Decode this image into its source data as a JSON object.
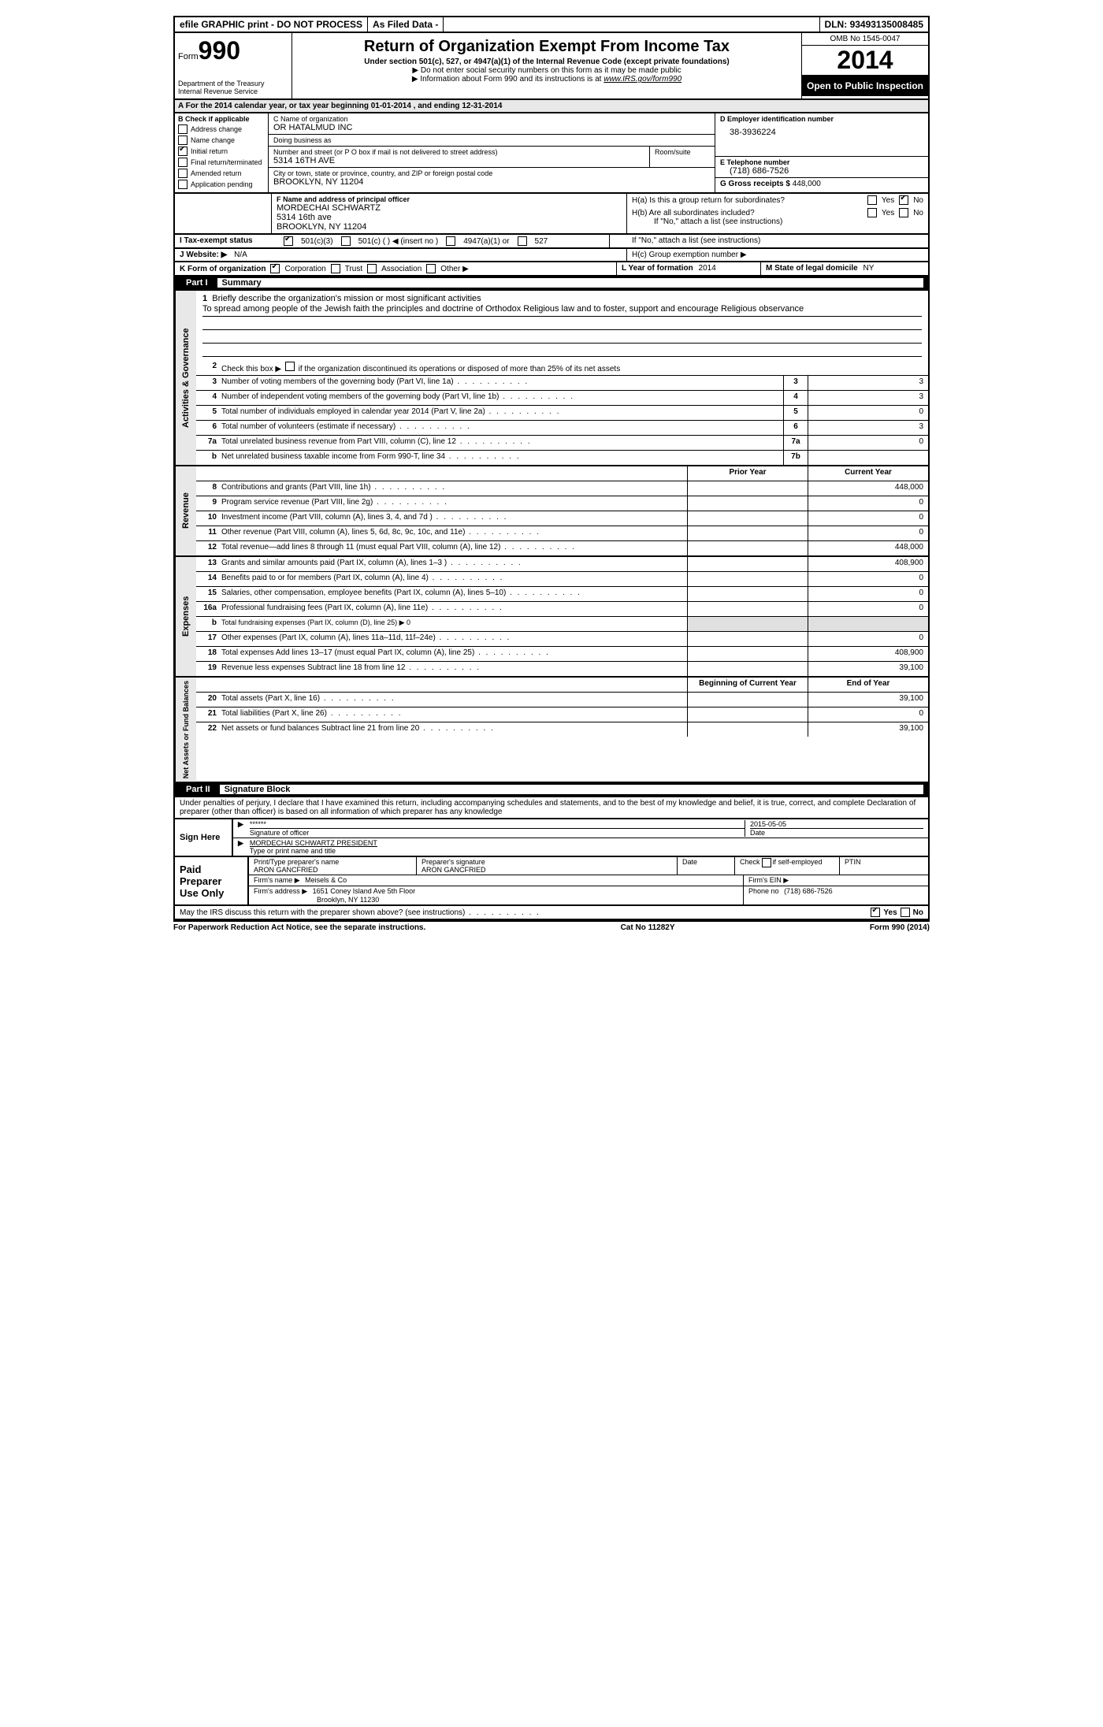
{
  "topbar": {
    "efile": "efile GRAPHIC print - DO NOT PROCESS",
    "asfiled": "As Filed Data -",
    "dln_label": "DLN:",
    "dln": "93493135008485"
  },
  "header": {
    "form_word": "Form",
    "form_num": "990",
    "dept1": "Department of the Treasury",
    "dept2": "Internal Revenue Service",
    "title": "Return of Organization Exempt From Income Tax",
    "subtitle": "Under section 501(c), 527, or 4947(a)(1) of the Internal Revenue Code (except private foundations)",
    "note1": "▶ Do not enter social security numbers on this form as it may be made public",
    "note2": "▶ Information about Form 990 and its instructions is at",
    "note2_link": "www.IRS.gov/form990",
    "omb": "OMB No 1545-0047",
    "year": "2014",
    "inspection": "Open to Public Inspection"
  },
  "section_a": "A For the 2014 calendar year, or tax year beginning 01-01-2014    , and ending 12-31-2014",
  "col_b": {
    "label": "B Check if applicable",
    "items": [
      "Address change",
      "Name change",
      "Initial return",
      "Final return/terminated",
      "Amended return",
      "Application pending"
    ],
    "checked_index": 2
  },
  "col_c": {
    "name_label": "C Name of organization",
    "name": "OR HATALMUD INC",
    "dba_label": "Doing business as",
    "dba": "",
    "street_label": "Number and street (or P O box if mail is not delivered to street address)",
    "room_label": "Room/suite",
    "street": "5314 16TH AVE",
    "city_label": "City or town, state or province, country, and ZIP or foreign postal code",
    "city": "BROOKLYN, NY  11204"
  },
  "col_d": {
    "ein_label": "D Employer identification number",
    "ein": "38-3936224",
    "phone_label": "E Telephone number",
    "phone": "(718) 686-7526",
    "gross_label": "G Gross receipts $",
    "gross": "448,000"
  },
  "section_f": {
    "label": "F  Name and address of principal officer",
    "name": "MORDECHAI SCHWARTZ",
    "addr1": "5314 16th ave",
    "addr2": "BROOKLYN, NY  11204"
  },
  "section_h": {
    "ha_label": "H(a)  Is this a group return for subordinates?",
    "ha_yes": "Yes",
    "ha_no": "No",
    "hb_label": "H(b)  Are all subordinates included?",
    "hb_note": "If \"No,\" attach a list  (see instructions)",
    "hc_label": "H(c)  Group exemption number ▶"
  },
  "section_i": {
    "label": "I  Tax-exempt status",
    "opt1": "501(c)(3)",
    "opt2": "501(c) (   ) ◀ (insert no )",
    "opt3": "4947(a)(1) or",
    "opt4": "527"
  },
  "section_j": {
    "label": "J  Website: ▶",
    "value": "N/A"
  },
  "section_k": {
    "label": "K Form of organization",
    "opts": [
      "Corporation",
      "Trust",
      "Association",
      "Other ▶"
    ],
    "checked": 0
  },
  "section_l": {
    "label": "L Year of formation",
    "value": "2014"
  },
  "section_m": {
    "label": "M State of legal domicile",
    "value": "NY"
  },
  "part1": {
    "label": "Part I",
    "title": "Summary"
  },
  "summary": {
    "line1_label": "Briefly describe the organization's mission or most significant activities",
    "line1_text": "To spread among people of the Jewish faith the principles and doctrine of Orthodox Religious law and to foster, support and encourage Religious observance",
    "line2": "Check this box ▶     if the organization discontinued its operations or disposed of more than 25% of its net assets",
    "governance_label": "Activities & Governance",
    "revenue_label": "Revenue",
    "expenses_label": "Expenses",
    "netassets_label": "Net Assets or Fund Balances",
    "prior_year": "Prior Year",
    "current_year": "Current Year",
    "beg_year": "Beginning of Current Year",
    "end_year": "End of Year",
    "gov_rows": [
      {
        "n": "3",
        "d": "Number of voting members of the governing body (Part VI, line 1a)",
        "box": "3",
        "v": "3"
      },
      {
        "n": "4",
        "d": "Number of independent voting members of the governing body (Part VI, line 1b)",
        "box": "4",
        "v": "3"
      },
      {
        "n": "5",
        "d": "Total number of individuals employed in calendar year 2014 (Part V, line 2a)",
        "box": "5",
        "v": "0"
      },
      {
        "n": "6",
        "d": "Total number of volunteers (estimate if necessary)",
        "box": "6",
        "v": "3"
      },
      {
        "n": "7a",
        "d": "Total unrelated business revenue from Part VIII, column (C), line 12",
        "box": "7a",
        "v": "0"
      },
      {
        "n": "b",
        "d": "Net unrelated business taxable income from Form 990-T, line 34",
        "box": "7b",
        "v": ""
      }
    ],
    "rev_rows": [
      {
        "n": "8",
        "d": "Contributions and grants (Part VIII, line 1h)",
        "p": "",
        "c": "448,000"
      },
      {
        "n": "9",
        "d": "Program service revenue (Part VIII, line 2g)",
        "p": "",
        "c": "0"
      },
      {
        "n": "10",
        "d": "Investment income (Part VIII, column (A), lines 3, 4, and 7d )",
        "p": "",
        "c": "0"
      },
      {
        "n": "11",
        "d": "Other revenue (Part VIII, column (A), lines 5, 6d, 8c, 9c, 10c, and 11e)",
        "p": "",
        "c": "0"
      },
      {
        "n": "12",
        "d": "Total revenue—add lines 8 through 11 (must equal Part VIII, column (A), line 12)",
        "p": "",
        "c": "448,000"
      }
    ],
    "exp_rows": [
      {
        "n": "13",
        "d": "Grants and similar amounts paid (Part IX, column (A), lines 1–3 )",
        "p": "",
        "c": "408,900"
      },
      {
        "n": "14",
        "d": "Benefits paid to or for members (Part IX, column (A), line 4)",
        "p": "",
        "c": "0"
      },
      {
        "n": "15",
        "d": "Salaries, other compensation, employee benefits (Part IX, column (A), lines 5–10)",
        "p": "",
        "c": "0"
      },
      {
        "n": "16a",
        "d": "Professional fundraising fees (Part IX, column (A), line 11e)",
        "p": "",
        "c": "0"
      },
      {
        "n": "b",
        "d": "Total fundraising expenses (Part IX, column (D), line 25) ▶ 0",
        "p": null,
        "c": null,
        "shade": true
      },
      {
        "n": "17",
        "d": "Other expenses (Part IX, column (A), lines 11a–11d, 11f–24e)",
        "p": "",
        "c": "0"
      },
      {
        "n": "18",
        "d": "Total expenses  Add lines 13–17 (must equal Part IX, column (A), line 25)",
        "p": "",
        "c": "408,900"
      },
      {
        "n": "19",
        "d": "Revenue less expenses  Subtract line 18 from line 12",
        "p": "",
        "c": "39,100"
      }
    ],
    "net_rows": [
      {
        "n": "20",
        "d": "Total assets (Part X, line 16)",
        "p": "",
        "c": "39,100"
      },
      {
        "n": "21",
        "d": "Total liabilities (Part X, line 26)",
        "p": "",
        "c": "0"
      },
      {
        "n": "22",
        "d": "Net assets or fund balances  Subtract line 21 from line 20",
        "p": "",
        "c": "39,100"
      }
    ]
  },
  "part2": {
    "label": "Part II",
    "title": "Signature Block"
  },
  "perjury": "Under penalties of perjury, I declare that I have examined this return, including accompanying schedules and statements, and to the best of my knowledge and belief, it is true, correct, and complete  Declaration of preparer (other than officer) is based on all information of which preparer has any knowledge",
  "sign": {
    "here_label": "Sign Here",
    "sig_stars": "******",
    "sig_label": "Signature of officer",
    "date": "2015-05-05",
    "date_label": "Date",
    "name": "MORDECHAI SCHWARTZ PRESIDENT",
    "name_label": "Type or print name and title"
  },
  "preparer": {
    "label": "Paid Preparer Use Only",
    "name_label": "Print/Type preparer's name",
    "name": "ARON GANCFRIED",
    "sig_label": "Preparer's signature",
    "sig": "ARON GANCFRIED",
    "date_label": "Date",
    "check_label": "Check      if self-employed",
    "ptin_label": "PTIN",
    "firm_name_label": "Firm's name   ▶",
    "firm_name": "Meisels & Co",
    "firm_ein_label": "Firm's EIN ▶",
    "firm_addr_label": "Firm's address ▶",
    "firm_addr1": "1651 Coney Island Ave 5th Floor",
    "firm_addr2": "Brooklyn, NY  11230",
    "phone_label": "Phone no",
    "phone": "(718) 686-7526"
  },
  "discuss": {
    "text": "May the IRS discuss this return with the preparer shown above? (see instructions)",
    "yes": "Yes",
    "no": "No"
  },
  "footer": {
    "left": "For Paperwork Reduction Act Notice, see the separate instructions.",
    "center": "Cat No 11282Y",
    "right": "Form 990 (2014)"
  },
  "colors": {
    "black": "#000000",
    "shade": "#e0e0e0",
    "grey": "#e8e8e8"
  }
}
